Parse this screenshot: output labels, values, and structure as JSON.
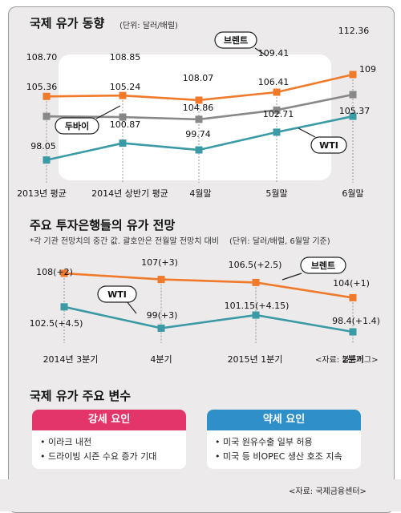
{
  "colors": {
    "brent": "#f07a2a",
    "dubai": "#888888",
    "wti": "#3a9aa6",
    "strong": "#e4356a",
    "weak": "#2f8fc9"
  },
  "section1": {
    "title": "국제 유가 동향",
    "unit": "(단위: 달러/배럴)"
  },
  "section2": {
    "title": "주요 투자은행들의 유가 전망",
    "note": "*각 기관 전망치의 중간 값. 괄호안은 전월말 전망치 대비",
    "unit": "(단위: 달러/배럴, 6월말 기준)",
    "source": "<자료: 블룸버그>"
  },
  "section3": {
    "title": "국제 유가 주요 변수",
    "strong": {
      "label": "강세 요인",
      "items": [
        "• 이라크 내전",
        "• 드라이빙 시즌 수요 증가 기대"
      ]
    },
    "weak": {
      "label": "약세 요인",
      "items": [
        "• 미국 원유수출 일부 허용",
        "• 미국 등 비OPEC 생산 호조 지속"
      ]
    },
    "source": "<자료: 국제금융센터>"
  },
  "chart_data": [
    {
      "type": "line",
      "title": "국제 유가 동향",
      "categories": [
        "2013년 평균",
        "2014년 상반기 평균",
        "4월말",
        "5월말",
        "6월말"
      ],
      "series": [
        {
          "name": "브렌트",
          "values": [
            108.7,
            108.85,
            108.07,
            109.41,
            112.36
          ],
          "labels": [
            "108.70",
            "108.85",
            "108.07",
            "109.41",
            "112.36"
          ]
        },
        {
          "name": "두바이",
          "values": [
            105.36,
            105.24,
            104.86,
            106.41,
            109
          ],
          "labels": [
            "105.36",
            "105.24",
            "104.86",
            "106.41",
            "109"
          ]
        },
        {
          "name": "WTI",
          "values": [
            98.05,
            100.87,
            99.74,
            102.71,
            105.37
          ],
          "labels": [
            "98.05",
            "100.87",
            "99.74",
            "102.71",
            "105.37"
          ]
        }
      ]
    },
    {
      "type": "line",
      "title": "주요 투자은행들의 유가 전망",
      "categories": [
        "2014년 3분기",
        "4분기",
        "2015년 1분기",
        "2분기"
      ],
      "series": [
        {
          "name": "브렌트",
          "values": [
            108,
            107,
            106.5,
            104
          ],
          "labels": [
            "108(+2)",
            "107(+3)",
            "106.5(+2.5)",
            "104(+1)"
          ]
        },
        {
          "name": "WTI",
          "values": [
            102.5,
            99,
            101.15,
            98.4
          ],
          "labels": [
            "102.5(+4.5)",
            "99(+3)",
            "101.15(+4.15)",
            "98.4(+1.4)"
          ]
        }
      ]
    }
  ]
}
